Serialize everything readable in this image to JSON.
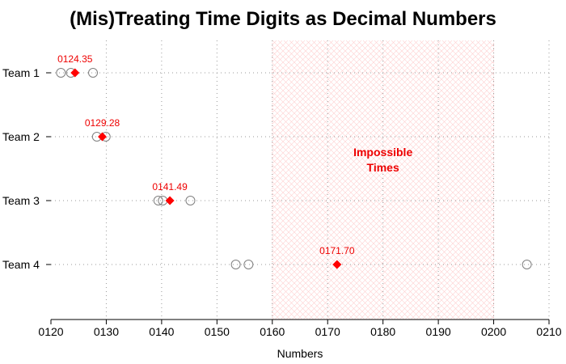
{
  "chart_data": {
    "type": "scatter",
    "title": "(Mis)Treating Time Digits as Decimal Numbers",
    "xlabel": "Numbers",
    "ylabel": "",
    "xlim": [
      120,
      210
    ],
    "x_ticks": [
      120,
      130,
      140,
      150,
      160,
      170,
      180,
      190,
      200,
      210
    ],
    "x_tick_labels": [
      "0120",
      "0130",
      "0140",
      "0150",
      "0160",
      "0170",
      "0180",
      "0190",
      "0200",
      "0210"
    ],
    "categories": [
      "Team 1",
      "Team 2",
      "Team 3",
      "Team 4"
    ],
    "grid": "dotted",
    "series": [
      {
        "marker": "open-circle",
        "color": "#808080",
        "points": [
          {
            "category": "Team 1",
            "values": [
              121.8,
              123.6,
              127.6
            ]
          },
          {
            "category": "Team 2",
            "values": [
              128.3,
              129.9
            ]
          },
          {
            "category": "Team 3",
            "values": [
              139.4,
              140.2,
              145.2
            ]
          },
          {
            "category": "Team 4",
            "values": [
              153.4,
              155.7,
              206.0
            ]
          }
        ]
      },
      {
        "marker": "filled-diamond",
        "color": "#ff0000",
        "points": [
          {
            "category": "Team 1",
            "value": 124.35,
            "label": "0124.35"
          },
          {
            "category": "Team 2",
            "value": 129.28,
            "label": "0129.28"
          },
          {
            "category": "Team 3",
            "value": 141.49,
            "label": "0141.49"
          },
          {
            "category": "Team 4",
            "value": 171.7,
            "label": "0171.70"
          }
        ]
      }
    ],
    "shaded_region": {
      "x_range": [
        160,
        200
      ],
      "label_lines": [
        "Impossible",
        "Times"
      ],
      "color": "#ffcccc"
    }
  }
}
